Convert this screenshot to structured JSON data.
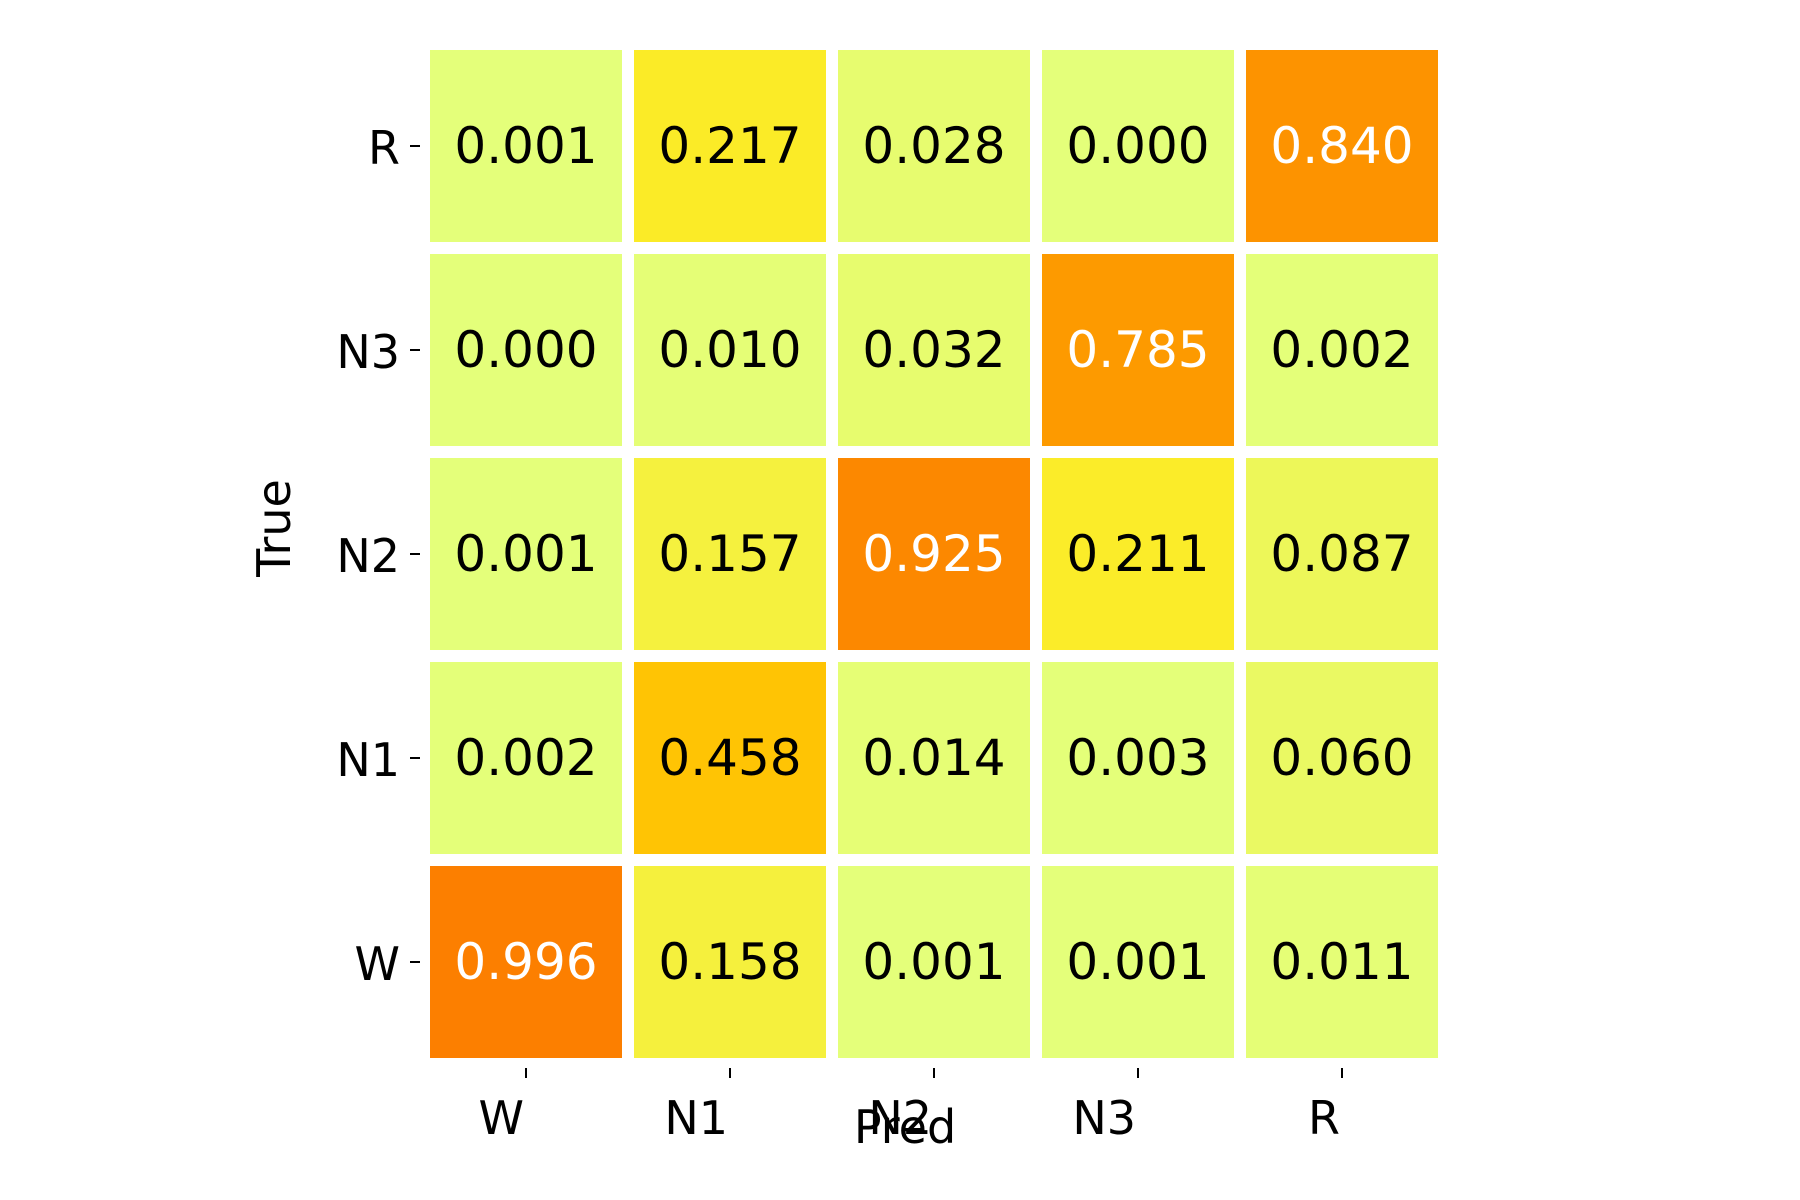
{
  "chart_data": {
    "type": "heatmap",
    "title": "",
    "xlabel": "Pred",
    "ylabel": "True",
    "x_categories": [
      "W",
      "N1",
      "N2",
      "N3",
      "R"
    ],
    "y_categories_bottom_to_top": [
      "W",
      "N1",
      "N2",
      "N3",
      "R"
    ],
    "value_range": [
      0,
      1
    ],
    "colormap": "Wistia",
    "colors": {
      "low": "#e4ff7a",
      "mid": "#ffe81a",
      "high": "#ffbd00",
      "top": "#fc7f00",
      "cell_gap": "#ffffff",
      "dark_text": "#000000",
      "light_text": "#ffffff"
    },
    "rows": [
      {
        "true": "W",
        "values": [
          0.996,
          0.158,
          0.001,
          0.001,
          0.011
        ],
        "labels": [
          "0.996",
          "0.158",
          "0.001",
          "0.001",
          "0.011"
        ]
      },
      {
        "true": "N1",
        "values": [
          0.002,
          0.458,
          0.014,
          0.003,
          0.06
        ],
        "labels": [
          "0.002",
          "0.458",
          "0.014",
          "0.003",
          "0.060"
        ]
      },
      {
        "true": "N2",
        "values": [
          0.001,
          0.157,
          0.925,
          0.211,
          0.087
        ],
        "labels": [
          "0.001",
          "0.157",
          "0.925",
          "0.211",
          "0.087"
        ]
      },
      {
        "true": "N3",
        "values": [
          0.0,
          0.01,
          0.032,
          0.785,
          0.002
        ],
        "labels": [
          "0.000",
          "0.010",
          "0.032",
          "0.785",
          "0.002"
        ]
      },
      {
        "true": "R",
        "values": [
          0.001,
          0.217,
          0.028,
          0.0,
          0.84
        ],
        "labels": [
          "0.001",
          "0.217",
          "0.028",
          "0.000",
          "0.840"
        ]
      }
    ]
  }
}
